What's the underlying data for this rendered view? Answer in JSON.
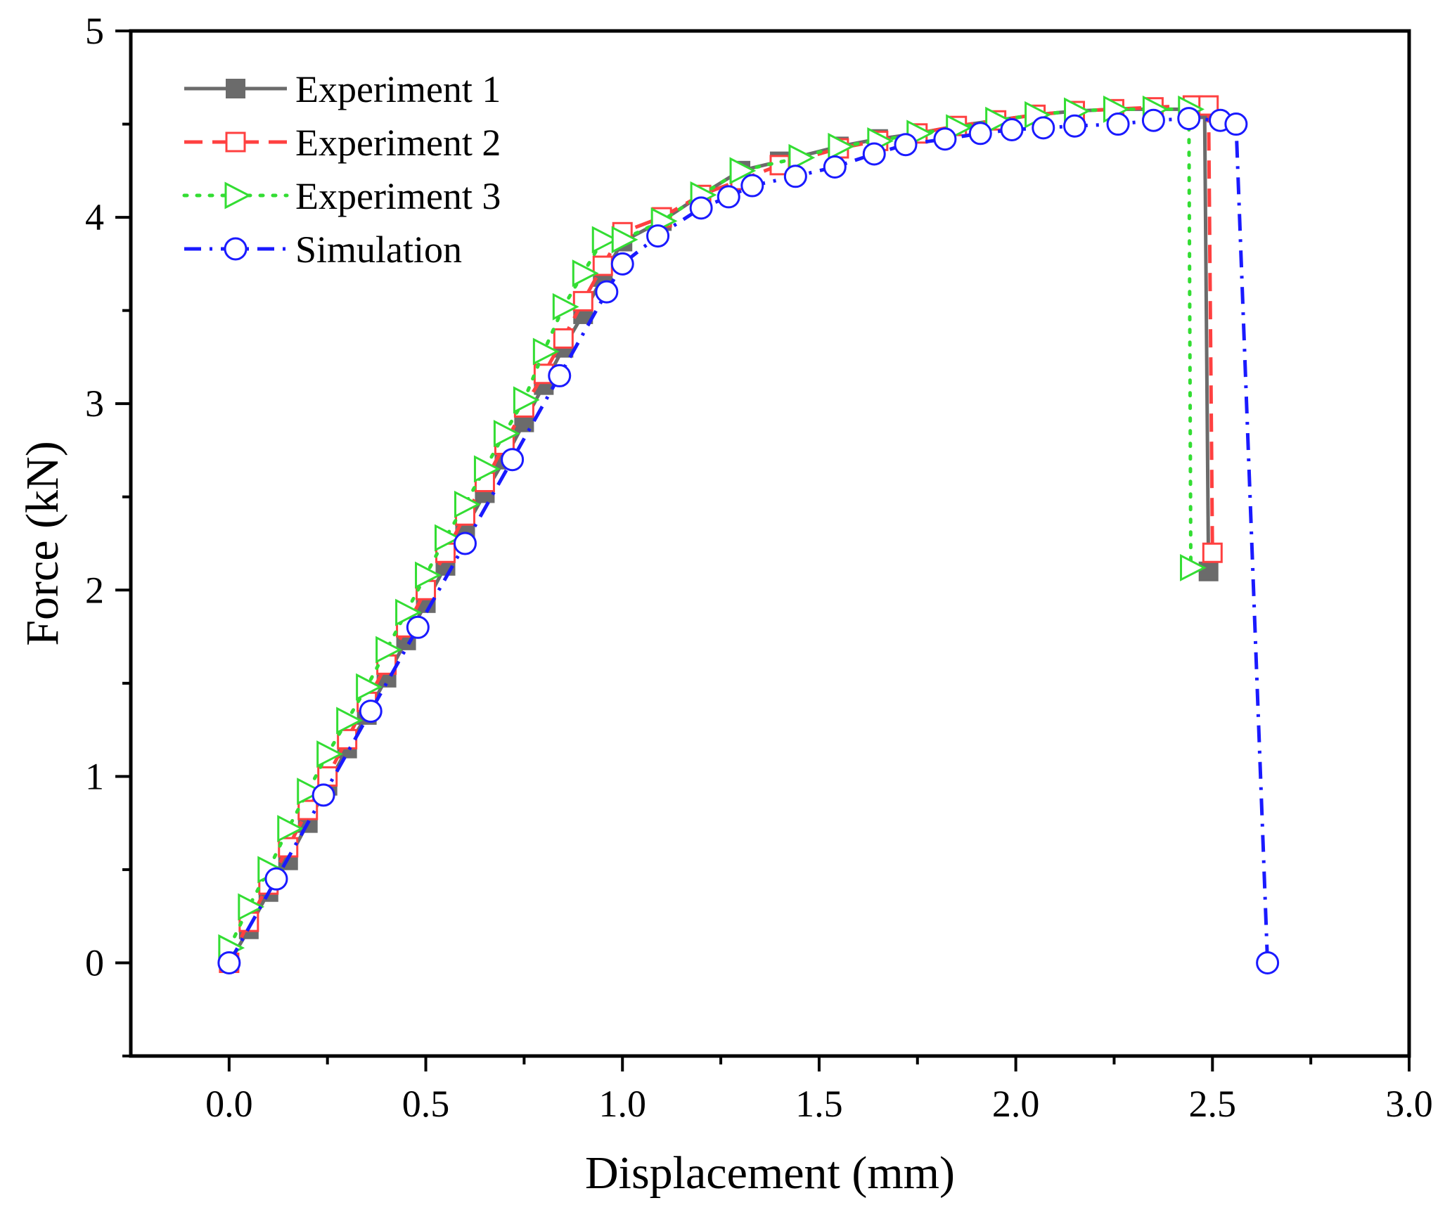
{
  "chart_data": {
    "type": "line",
    "title": "",
    "xlabel": "Displacement (mm)",
    "ylabel": "Force (kN)",
    "xlim": [
      -0.25,
      3.0
    ],
    "ylim": [
      -0.5,
      5.0
    ],
    "xticks": [
      0.0,
      0.5,
      1.0,
      1.5,
      2.0,
      2.5,
      3.0
    ],
    "xtick_labels": [
      "0.0",
      "0.5",
      "1.0",
      "1.5",
      "2.0",
      "2.5",
      "3.0"
    ],
    "yticks": [
      0,
      1,
      2,
      3,
      4,
      5
    ],
    "ytick_labels": [
      "0",
      "1",
      "2",
      "3",
      "4",
      "5"
    ],
    "grid": false,
    "legend_position": "top-left",
    "series": [
      {
        "name": "Experiment 1",
        "color": "#6b6b6b",
        "line_style": "solid",
        "marker": "filled-square",
        "x": [
          0.0,
          0.05,
          0.1,
          0.15,
          0.2,
          0.25,
          0.3,
          0.35,
          0.4,
          0.45,
          0.5,
          0.55,
          0.6,
          0.65,
          0.7,
          0.75,
          0.8,
          0.85,
          0.9,
          0.95,
          1.0,
          1.1,
          1.2,
          1.3,
          1.4,
          1.55,
          1.65,
          1.75,
          1.85,
          1.95,
          2.05,
          2.15,
          2.25,
          2.35,
          2.45,
          2.48,
          2.49
        ],
        "y": [
          0.0,
          0.18,
          0.38,
          0.55,
          0.75,
          0.95,
          1.15,
          1.33,
          1.53,
          1.73,
          1.93,
          2.13,
          2.33,
          2.52,
          2.7,
          2.9,
          3.1,
          3.3,
          3.48,
          3.68,
          3.87,
          3.98,
          4.12,
          4.25,
          4.3,
          4.38,
          4.42,
          4.45,
          4.49,
          4.52,
          4.55,
          4.57,
          4.58,
          4.58,
          4.58,
          4.58,
          2.1
        ]
      },
      {
        "name": "Experiment 2",
        "color": "#ff4040",
        "line_style": "dashed",
        "marker": "open-square",
        "x": [
          0.0,
          0.05,
          0.1,
          0.15,
          0.2,
          0.25,
          0.3,
          0.35,
          0.4,
          0.45,
          0.5,
          0.55,
          0.6,
          0.65,
          0.7,
          0.75,
          0.8,
          0.85,
          0.9,
          0.95,
          1.0,
          1.1,
          1.2,
          1.3,
          1.4,
          1.55,
          1.65,
          1.75,
          1.85,
          1.95,
          2.05,
          2.15,
          2.25,
          2.35,
          2.45,
          2.49,
          2.5
        ],
        "y": [
          0.0,
          0.22,
          0.42,
          0.62,
          0.82,
          1.0,
          1.2,
          1.4,
          1.6,
          1.8,
          2.0,
          2.2,
          2.4,
          2.58,
          2.78,
          2.98,
          3.16,
          3.35,
          3.55,
          3.74,
          3.92,
          4.0,
          4.12,
          4.2,
          4.28,
          4.37,
          4.41,
          4.45,
          4.49,
          4.52,
          4.55,
          4.57,
          4.58,
          4.59,
          4.6,
          4.6,
          2.2
        ]
      },
      {
        "name": "Experiment 3",
        "color": "#33dd33",
        "line_style": "dotted",
        "marker": "open-triangle-right",
        "x": [
          0.0,
          0.05,
          0.1,
          0.15,
          0.2,
          0.25,
          0.3,
          0.35,
          0.4,
          0.45,
          0.5,
          0.55,
          0.6,
          0.65,
          0.7,
          0.75,
          0.8,
          0.85,
          0.9,
          0.95,
          1.0,
          1.1,
          1.2,
          1.3,
          1.45,
          1.55,
          1.65,
          1.75,
          1.85,
          1.95,
          2.05,
          2.15,
          2.25,
          2.35,
          2.44,
          2.445
        ],
        "y": [
          0.08,
          0.3,
          0.5,
          0.72,
          0.92,
          1.12,
          1.3,
          1.48,
          1.68,
          1.88,
          2.08,
          2.28,
          2.46,
          2.65,
          2.84,
          3.02,
          3.28,
          3.52,
          3.7,
          3.88,
          3.88,
          3.98,
          4.12,
          4.25,
          4.32,
          4.38,
          4.41,
          4.45,
          4.48,
          4.52,
          4.55,
          4.57,
          4.58,
          4.58,
          4.58,
          2.12
        ]
      },
      {
        "name": "Simulation",
        "color": "#1a1aff",
        "line_style": "dash-dot",
        "marker": "open-circle",
        "x": [
          0.0,
          0.12,
          0.24,
          0.36,
          0.48,
          0.6,
          0.72,
          0.84,
          0.96,
          1.0,
          1.09,
          1.2,
          1.27,
          1.33,
          1.44,
          1.54,
          1.64,
          1.72,
          1.82,
          1.91,
          1.99,
          2.07,
          2.15,
          2.26,
          2.35,
          2.44,
          2.52,
          2.56,
          2.64
        ],
        "y": [
          0.0,
          0.45,
          0.9,
          1.35,
          1.8,
          2.25,
          2.7,
          3.15,
          3.6,
          3.75,
          3.9,
          4.05,
          4.11,
          4.17,
          4.22,
          4.27,
          4.34,
          4.39,
          4.42,
          4.45,
          4.47,
          4.48,
          4.49,
          4.5,
          4.52,
          4.53,
          4.52,
          4.5,
          0.0
        ]
      }
    ]
  }
}
